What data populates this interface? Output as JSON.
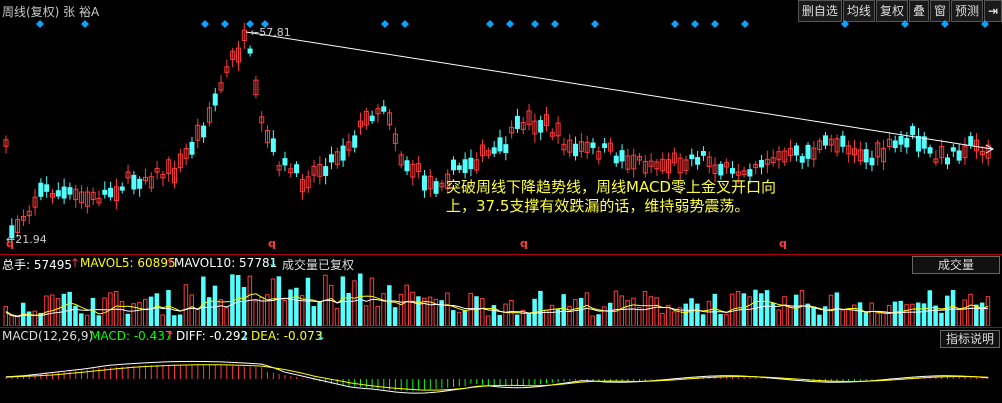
{
  "header": {
    "title": "周线(复权) 张 裕A",
    "buttons": [
      "删自选",
      "均线",
      "复权",
      "叠",
      "窗",
      "预测"
    ],
    "exit_icon": "exit-arrow-icon"
  },
  "main_chart": {
    "high_label": "57.81",
    "low_label": "21.94",
    "q_markers": [
      "q",
      "q",
      "q",
      "q"
    ],
    "annotation": "突破周线下降趋势线，周线MACD零上金叉开口向上，37.5支撑有效跌漏的话，维持弱势震荡。",
    "colors": {
      "up": "#ff3b3b",
      "down": "#54ffff",
      "trendline": "#ffffff",
      "diamond": "#0aa2ff",
      "annotation": "#ffff3a"
    }
  },
  "volume_panel": {
    "total_label": "总手: 57495",
    "mavol5_label": "MAVOL5: 60895",
    "mavol10_label": "MAVOL10: 57781",
    "note": "成交量已复权",
    "dropdown": "成交量",
    "colors": {
      "total": "#ffffff",
      "mavol5": "#ffff00",
      "mavol10": "#ffffff"
    }
  },
  "macd_panel": {
    "title": "MACD(12,26,9)",
    "macd_label": "MACD: -0.437",
    "diff_label": "DIFF: -0.292",
    "dea_label": "DEA: -0.073",
    "help_button": "指标说明",
    "colors": {
      "macd": "#00ff00",
      "diff": "#ffffff",
      "dea": "#ffff00"
    }
  },
  "arrows": {
    "up": "↑",
    "down": "↓"
  }
}
